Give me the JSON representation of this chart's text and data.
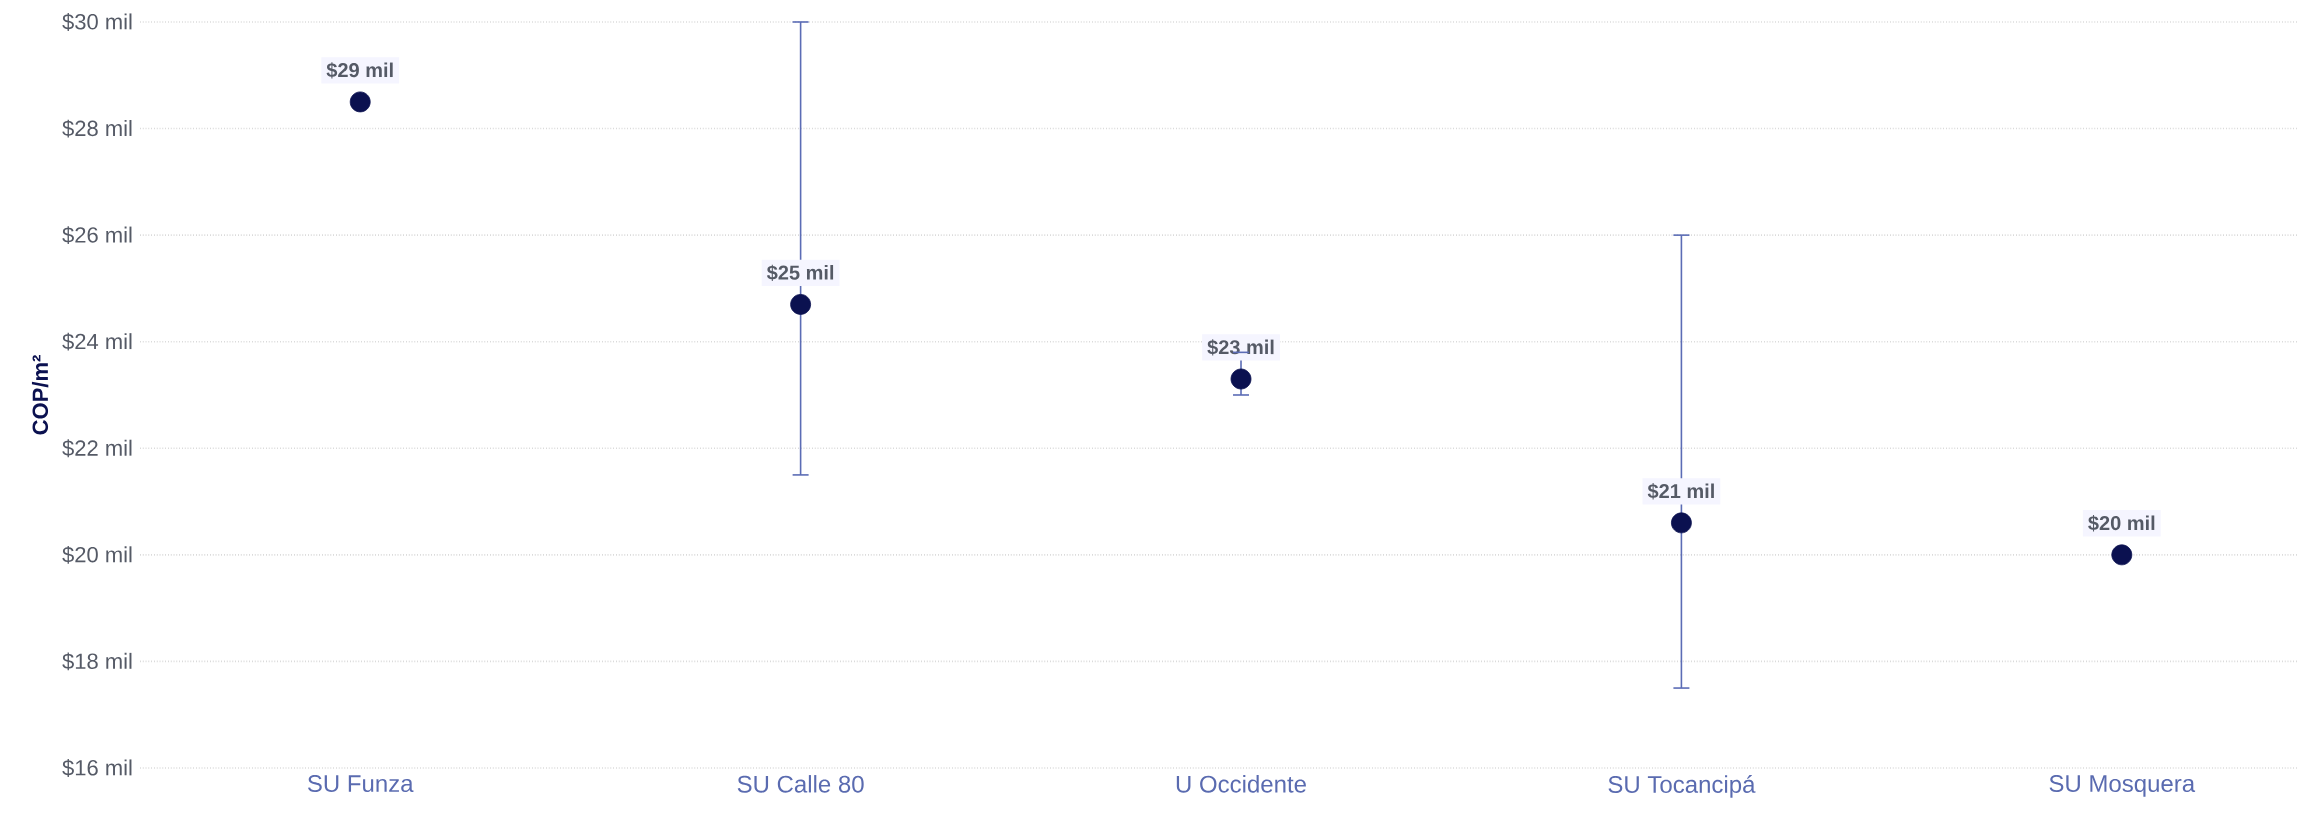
{
  "chart_data": {
    "type": "scatter",
    "ylabel": "COP/m²",
    "categories": [
      "SU Funza",
      "SU Calle 80",
      "U Occidente",
      "SU Tocancipá",
      "SU Mosquera"
    ],
    "values": [
      28.5,
      24.7,
      23.3,
      20.6,
      20.0
    ],
    "errors": [
      null,
      [
        21.5,
        30.0
      ],
      [
        23.0,
        23.8
      ],
      [
        17.5,
        26.0
      ],
      null
    ],
    "value_labels": [
      "$29 mil",
      "$25 mil",
      "$23 mil",
      "$21 mil",
      "$20 mil"
    ],
    "color": "#0b1150",
    "ylim": [
      16,
      30
    ],
    "yticks": [
      {
        "value": 16,
        "label": "$16 mil"
      },
      {
        "value": 18,
        "label": "$18 mil"
      },
      {
        "value": 20,
        "label": "$20 mil"
      },
      {
        "value": 22,
        "label": "$22 mil"
      },
      {
        "value": 24,
        "label": "$24 mil"
      },
      {
        "value": 26,
        "label": "$26 mil"
      },
      {
        "value": 28,
        "label": "$28 mil"
      },
      {
        "value": 30,
        "label": "$30 mil"
      }
    ],
    "grid": "y",
    "marker": "circle"
  }
}
